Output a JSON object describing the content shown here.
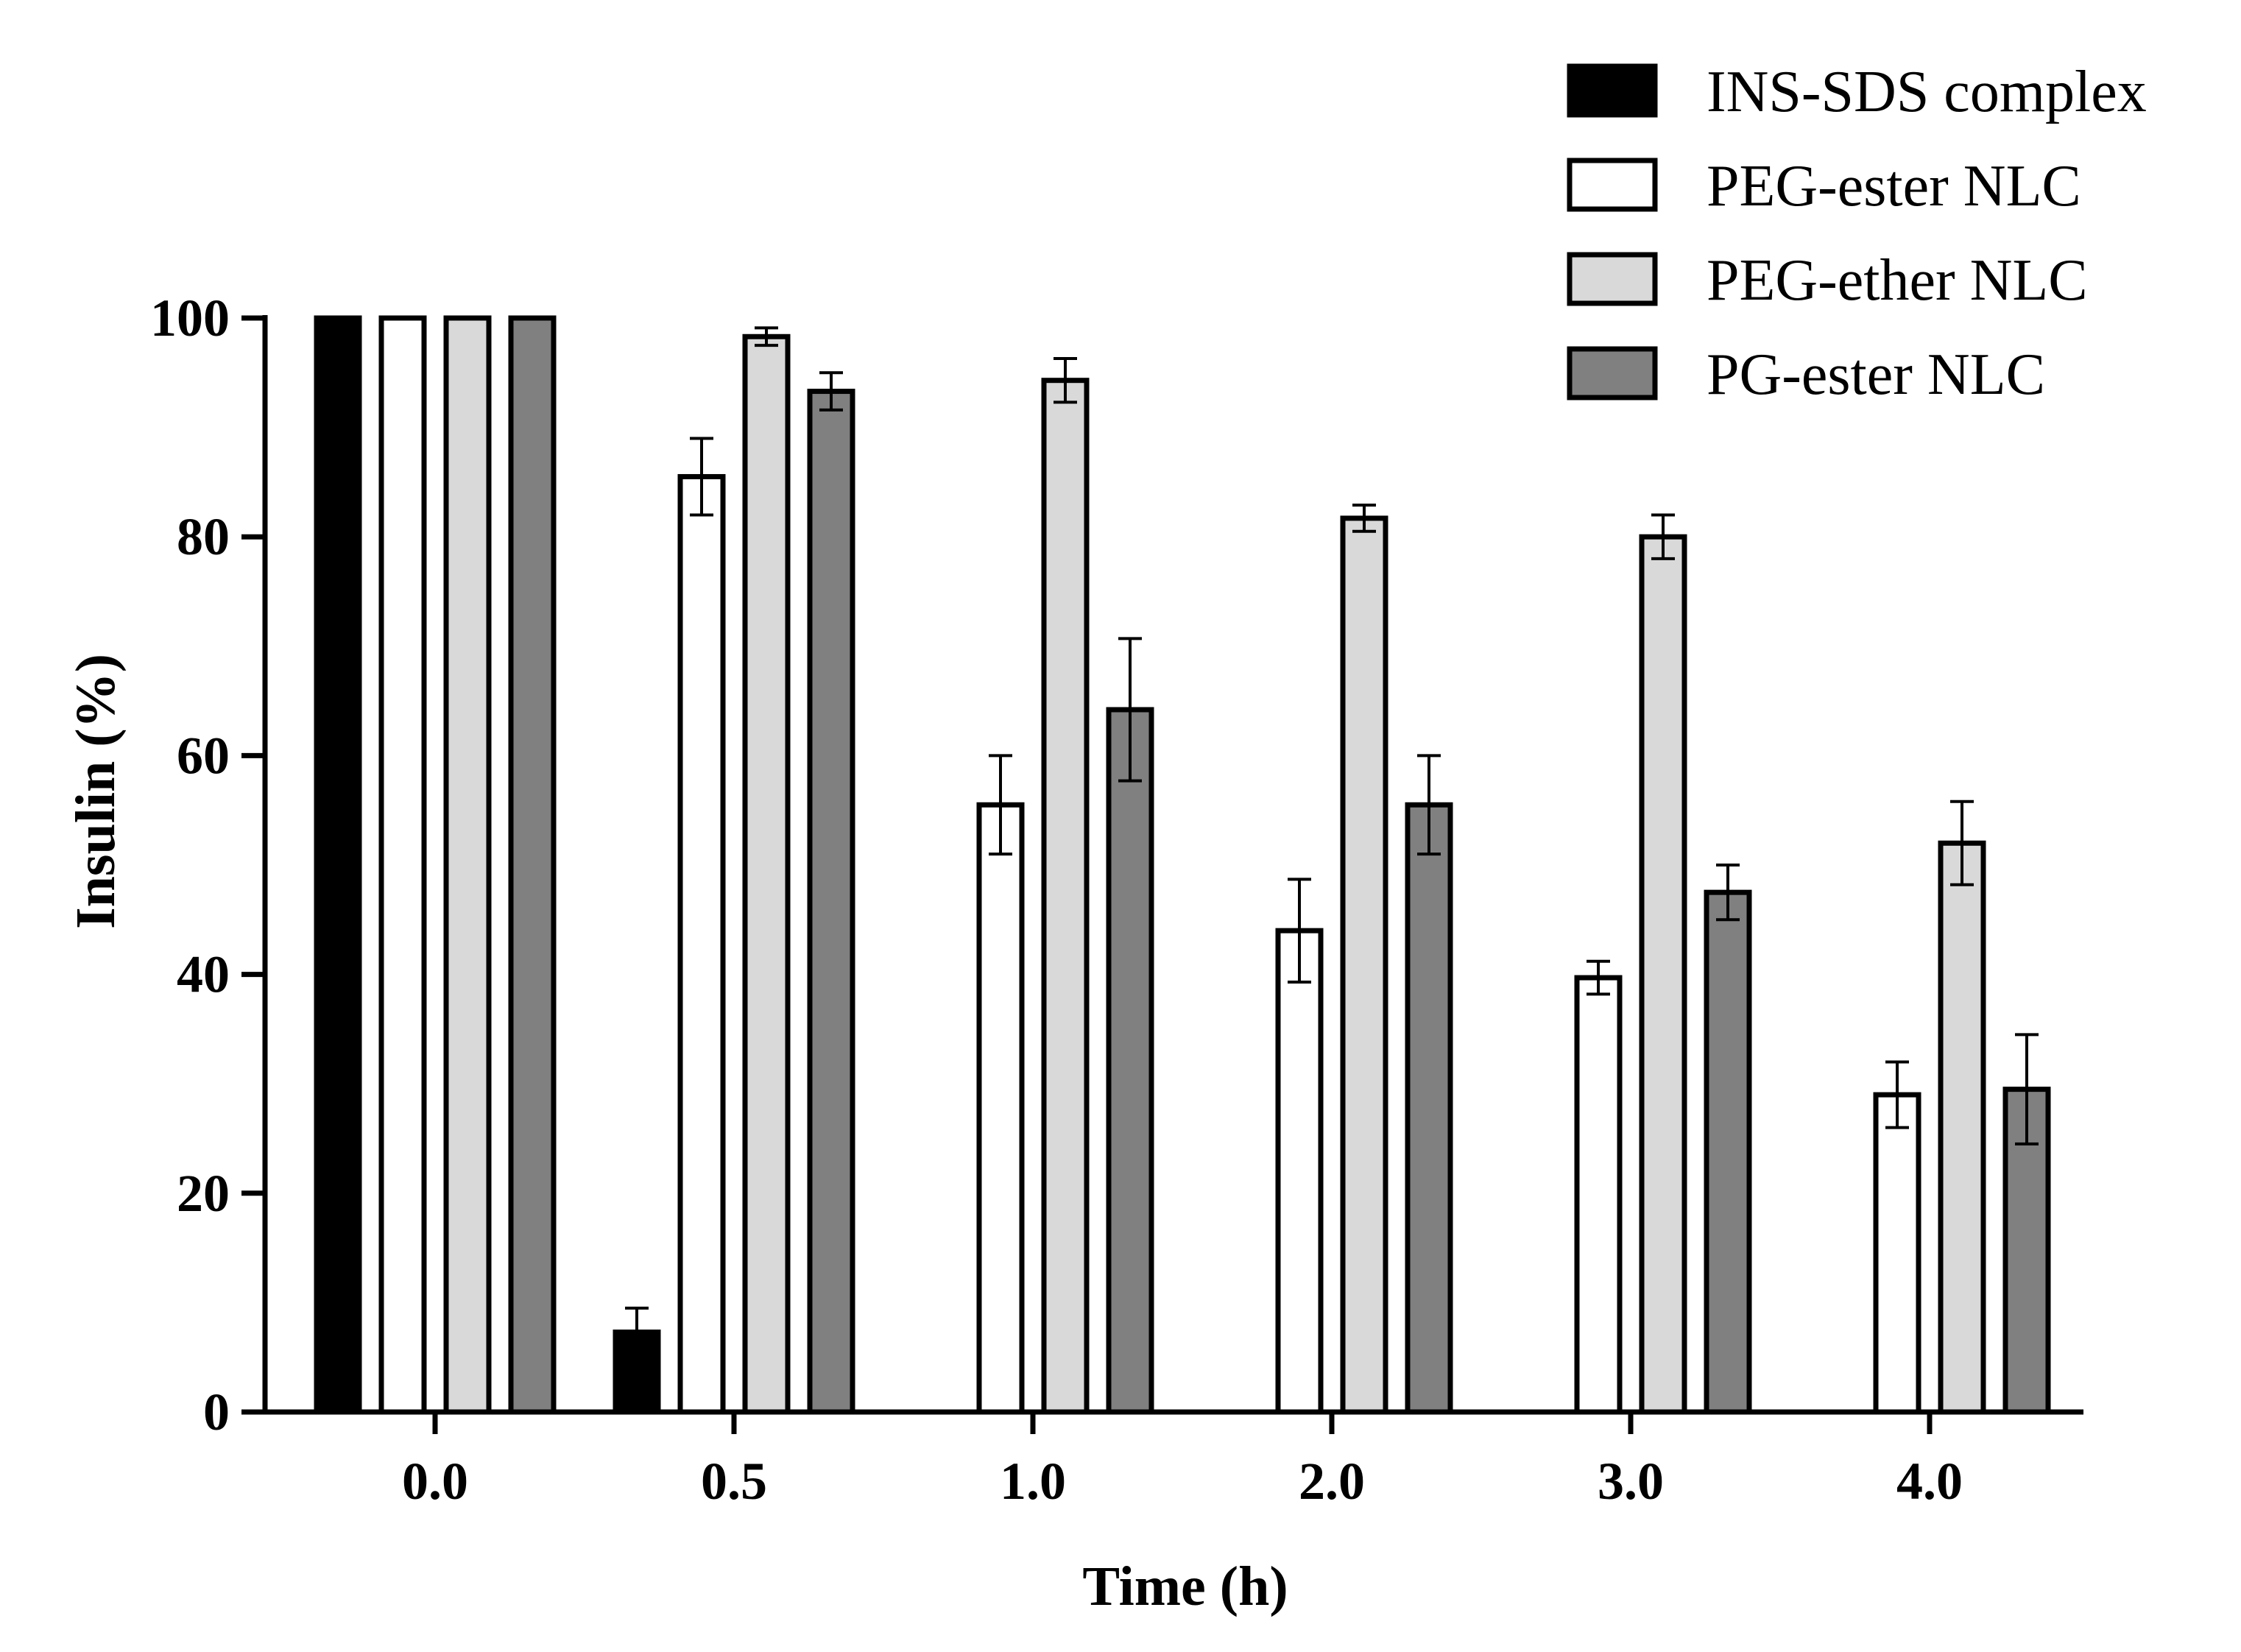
{
  "chart_data": {
    "type": "bar",
    "title": "",
    "xlabel": "Time (h)",
    "ylabel": "Insulin (%)",
    "categories": [
      "0.0",
      "0.5",
      "1.0",
      "2.0",
      "3.0",
      "4.0"
    ],
    "ylim": [
      0,
      100
    ],
    "yticks": [
      0,
      20,
      40,
      60,
      80,
      100
    ],
    "grid": false,
    "legend_position": "top-right",
    "series": [
      {
        "name": "INS-SDS complex",
        "color": "#000000",
        "values": [
          100,
          7.3,
          null,
          null,
          null,
          null
        ],
        "errors": [
          0,
          2.2,
          null,
          null,
          null,
          null
        ]
      },
      {
        "name": "PEG-ester NLC",
        "color": "#ffffff",
        "values": [
          100,
          85.5,
          55.5,
          44,
          39.7,
          29
        ],
        "errors": [
          0,
          3.5,
          4.5,
          4.7,
          1.5,
          3
        ]
      },
      {
        "name": "PEG-ether NLC",
        "color": "#d9d9d9",
        "values": [
          100,
          98.3,
          94.3,
          81.7,
          80,
          52
        ],
        "errors": [
          0,
          0.8,
          2,
          1.2,
          2,
          3.8
        ]
      },
      {
        "name": "PG-ester NLC",
        "color": "#808080",
        "values": [
          100,
          93.3,
          64.2,
          55.5,
          47.5,
          29.5
        ],
        "errors": [
          0,
          1.7,
          6.5,
          4.5,
          2.5,
          5
        ]
      }
    ]
  }
}
